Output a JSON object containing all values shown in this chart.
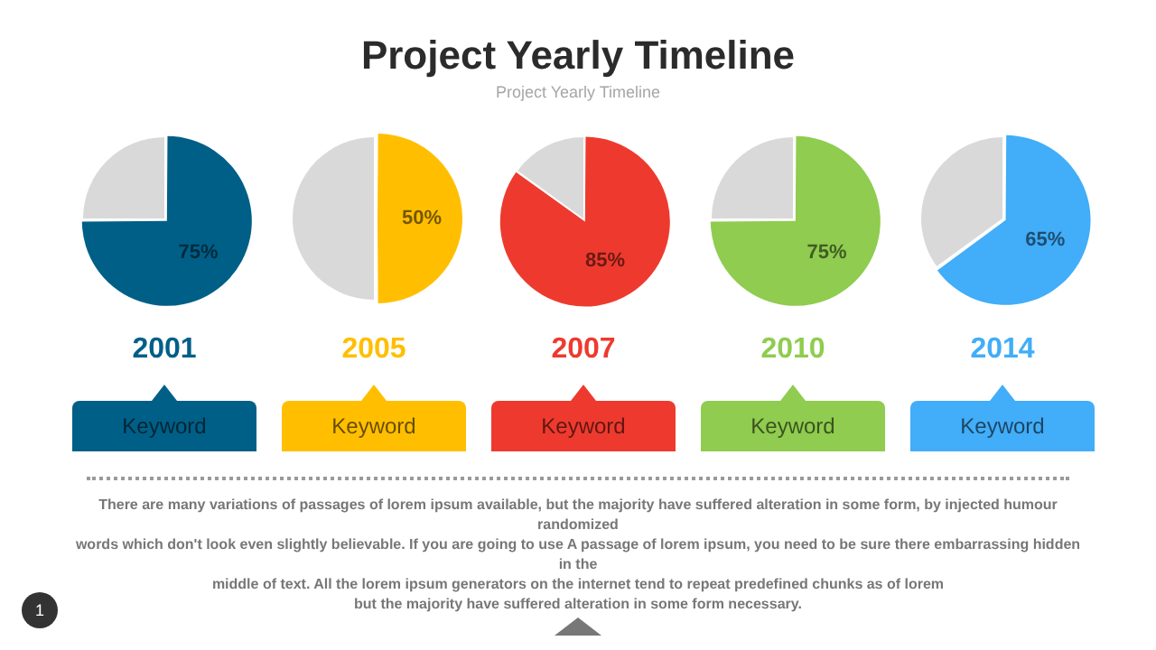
{
  "chart_data": [
    {
      "type": "other",
      "title": "Project Yearly Timeline",
      "subtitle": "Project Yearly Timeline"
    },
    {
      "type": "pie",
      "title": "2001",
      "categories": [
        null,
        null
      ],
      "values": [
        75,
        25
      ],
      "colors": [
        "#005f87",
        "#d9d9d9"
      ],
      "value_labels": [
        "75%",
        null
      ],
      "annotations": [
        "Keyword"
      ]
    },
    {
      "type": "pie",
      "title": "2005",
      "categories": [
        null,
        null
      ],
      "values": [
        50,
        50
      ],
      "colors": [
        "#ffbf00",
        "#d9d9d9"
      ],
      "value_labels": [
        "50%",
        null
      ],
      "annotations": [
        "Keyword"
      ]
    },
    {
      "type": "pie",
      "title": "2007",
      "categories": [
        null,
        null
      ],
      "values": [
        85,
        15
      ],
      "colors": [
        "#ee3a2e",
        "#d9d9d9"
      ],
      "value_labels": [
        "85%",
        null
      ],
      "annotations": [
        "Keyword"
      ]
    },
    {
      "type": "pie",
      "title": "2010",
      "categories": [
        null,
        null
      ],
      "values": [
        75,
        25
      ],
      "colors": [
        "#8fcc4f",
        "#d9d9d9"
      ],
      "value_labels": [
        "75%",
        null
      ],
      "annotations": [
        "Keyword"
      ]
    },
    {
      "type": "pie",
      "title": "2014",
      "categories": [
        null,
        null
      ],
      "values": [
        65,
        35
      ],
      "colors": [
        "#42adf8",
        "#d9d9d9"
      ],
      "value_labels": [
        "65%",
        null
      ],
      "annotations": [
        "Keyword"
      ]
    },
    {
      "type": "other",
      "annotations": [
        "There are many variations of passages of lorem ipsum available, but the majority have suffered alteration in some form, by injected humour randomized\nwords which don't look even slightly believable. If you are going to use A passage of lorem ipsum, you need to be sure there embarrassing hidden in the\nmiddle of text. All the lorem ipsum generators on the internet tend to repeat predefined chunks as of lorem\nbut the majority have suffered alteration in some form  necessary.",
        "1"
      ]
    }
  ]
}
